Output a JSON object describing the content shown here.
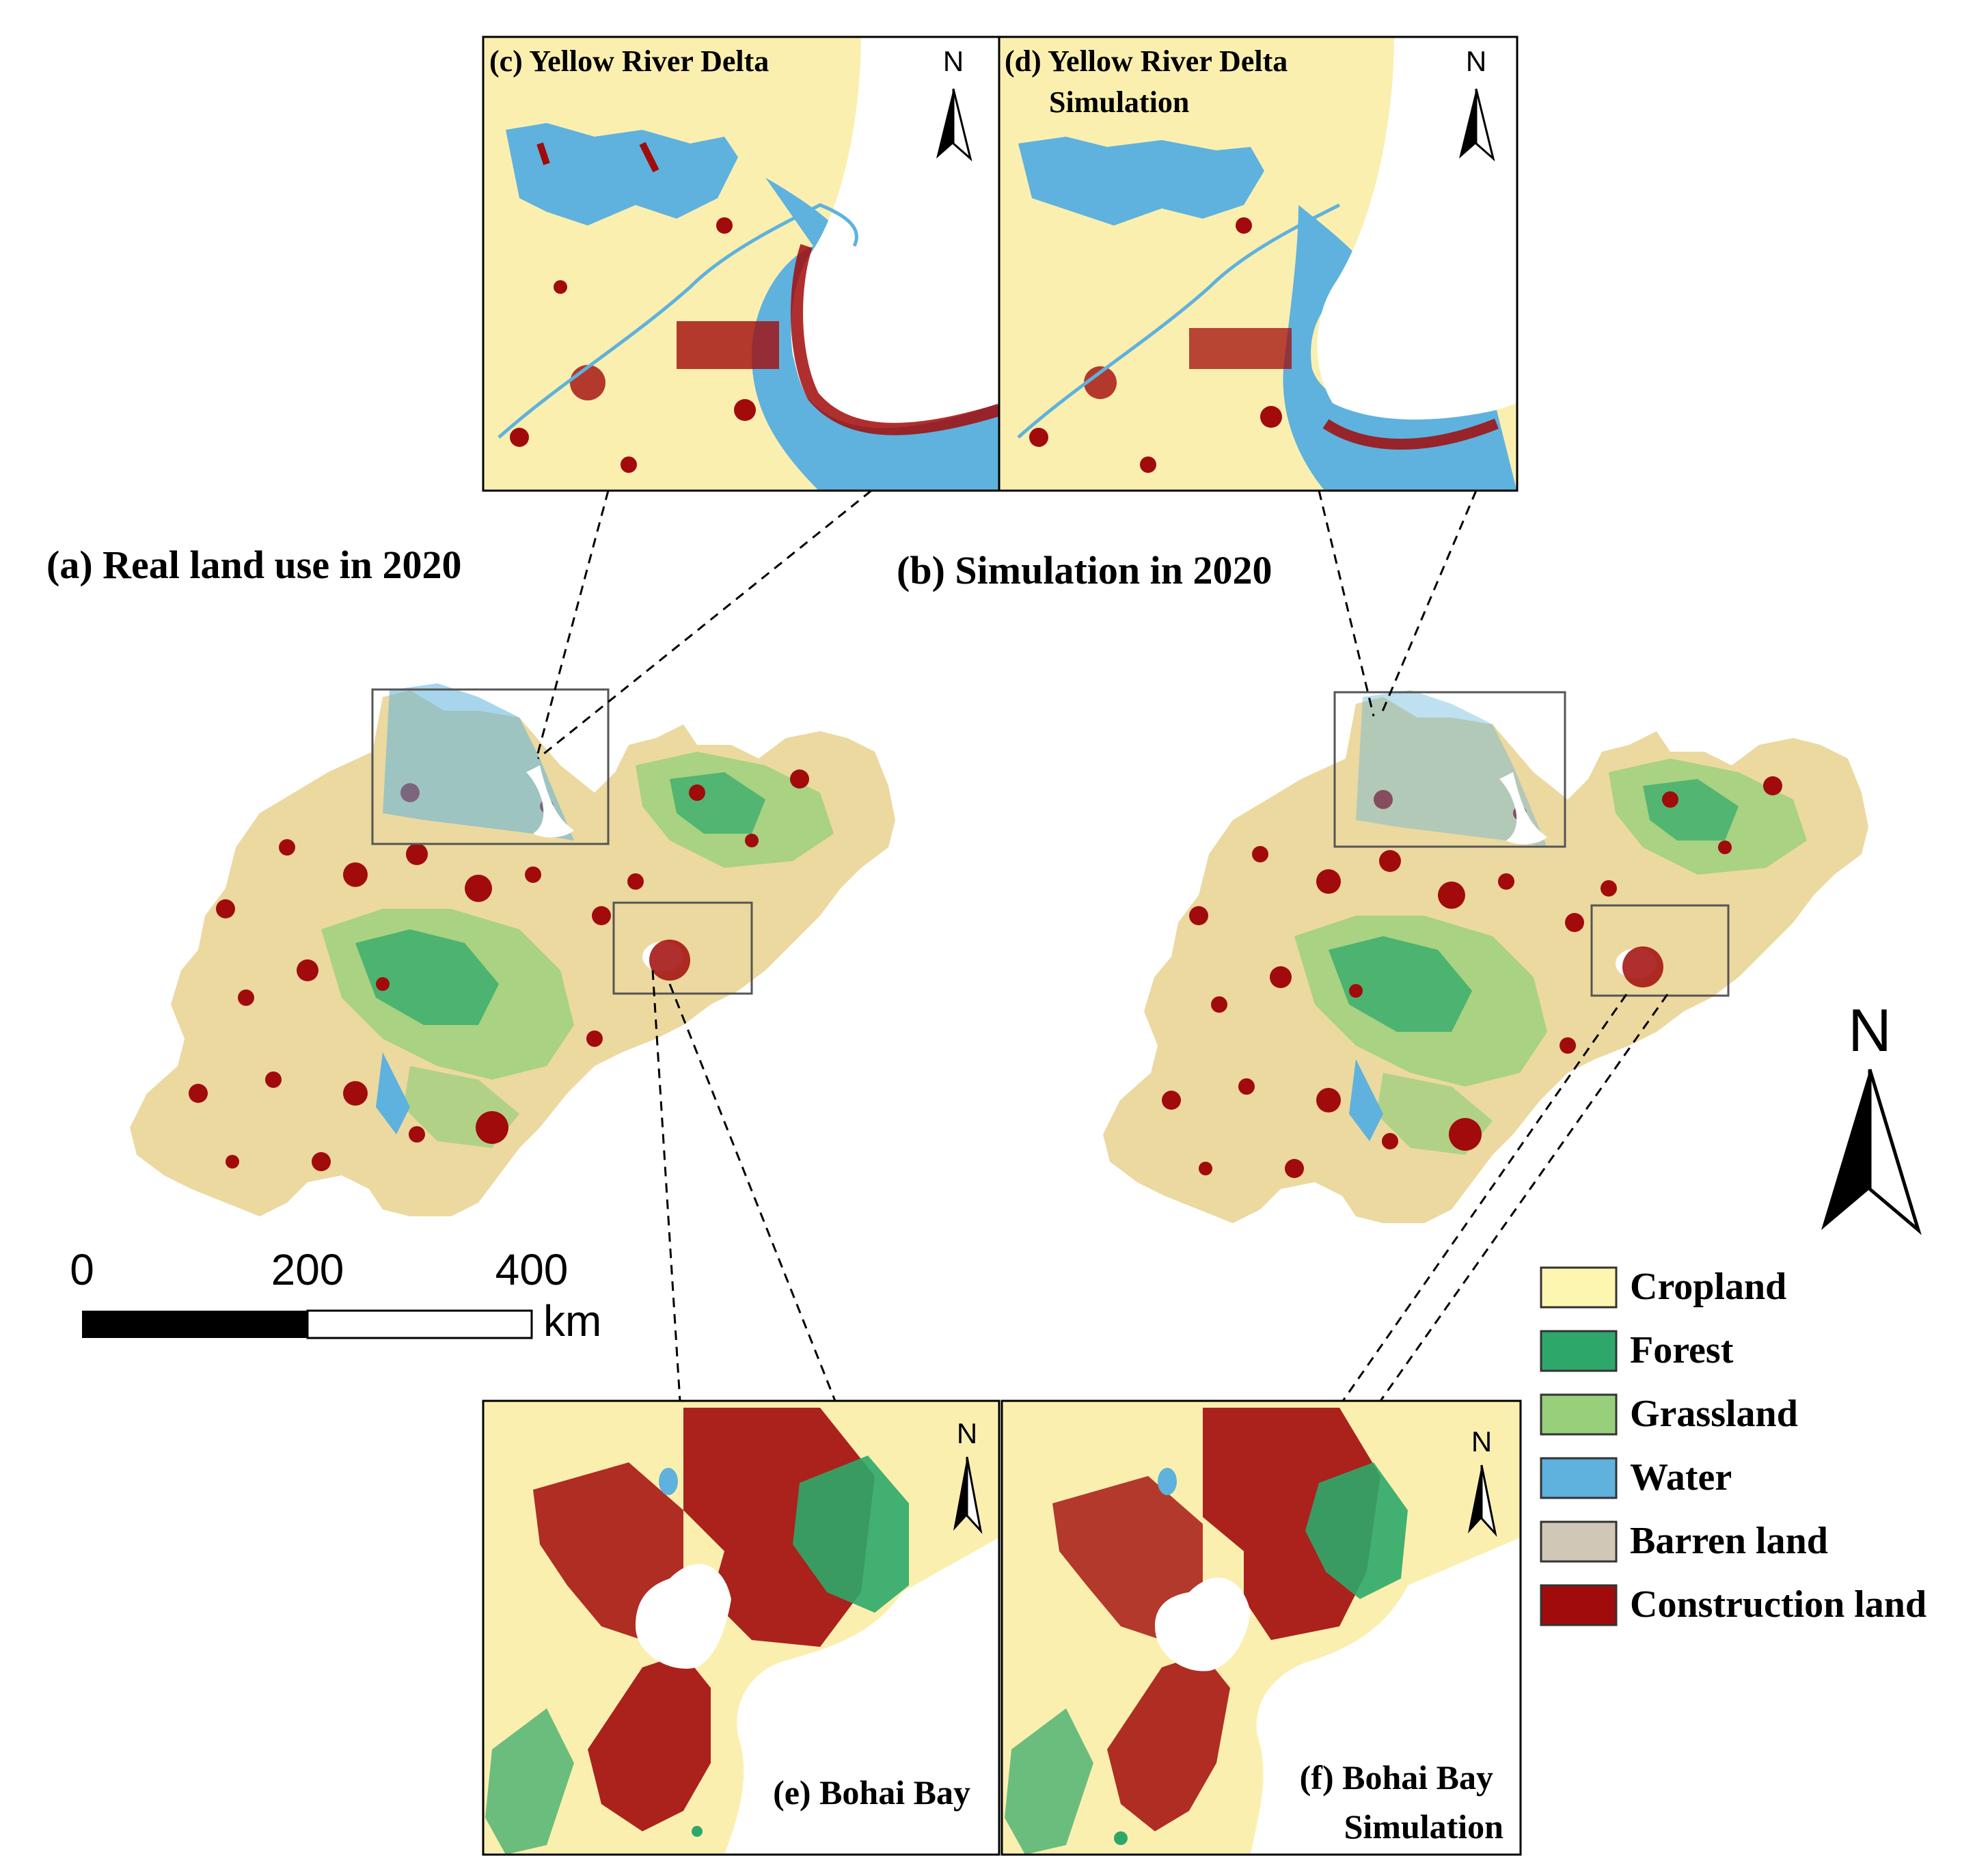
{
  "titles": {
    "panel_a": "(a) Real land use in 2020",
    "panel_b": "(b) Simulation in 2020",
    "panel_c": "(c) Yellow River Delta",
    "panel_d_line1": "(d) Yellow River Delta",
    "panel_d_line2": "Simulation",
    "panel_e": "(e) Bohai Bay",
    "panel_f_line1": "(f) Bohai Bay",
    "panel_f_line2": "Simulation"
  },
  "north_label": "N",
  "scale_bar": {
    "ticks": [
      "0",
      "200",
      "400"
    ],
    "unit": "km"
  },
  "legend": [
    {
      "label": "Cropland",
      "color": "#fdf6b0"
    },
    {
      "label": "Forest",
      "color": "#2ea86a"
    },
    {
      "label": "Grassland",
      "color": "#98cf7a"
    },
    {
      "label": "Water",
      "color": "#5eb2dd"
    },
    {
      "label": "Barren land",
      "color": "#d1c7b6"
    },
    {
      "label": "Construction land",
      "color": "#a10b0b"
    }
  ],
  "map_colors": {
    "province_base": "#ecd9a0",
    "inset_base": "#fbefb0",
    "construction": "#a10b0b",
    "water": "#5eb2dd",
    "forest": "#2ea86a",
    "grassland": "#98cf7a"
  }
}
